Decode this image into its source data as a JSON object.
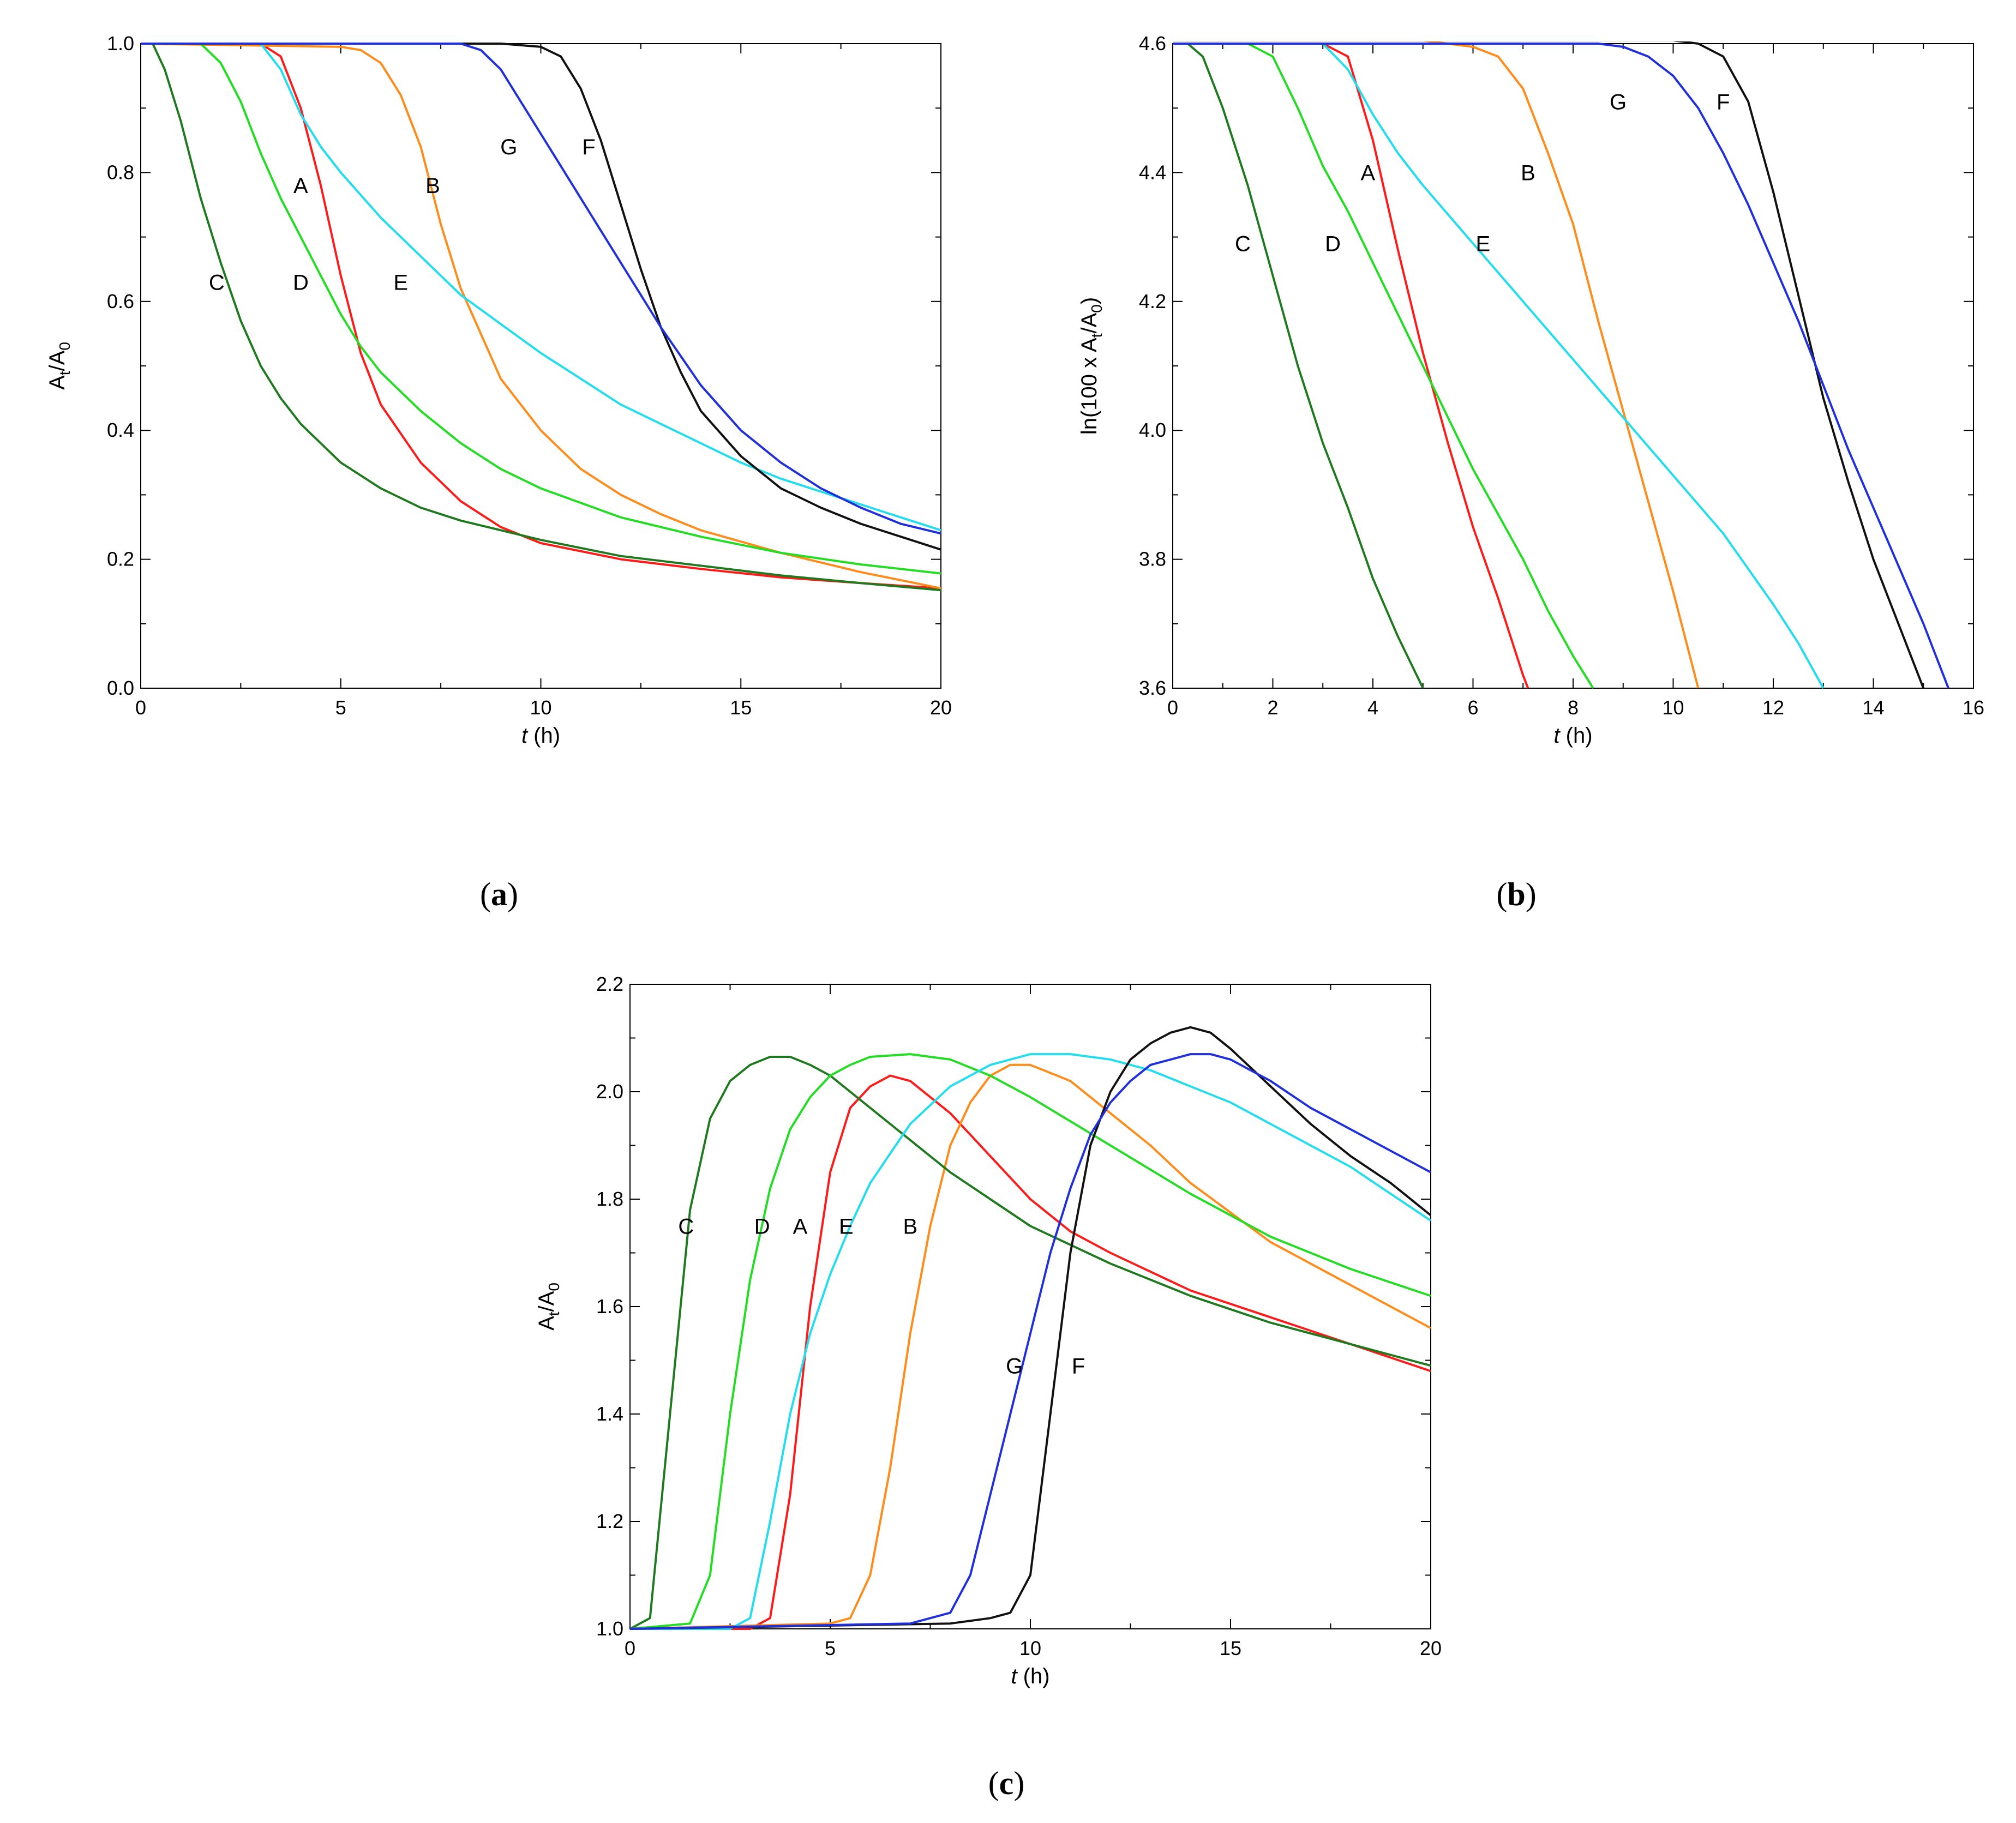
{
  "colors": {
    "A": "#ff1a1a",
    "B": "#ff8c1a",
    "C": "#1f7a1f",
    "D": "#22dd22",
    "E": "#22ddee",
    "F": "#111111",
    "G": "#1f2fdd"
  },
  "chart_data": [
    {
      "id": "a",
      "type": "line",
      "caption": "a",
      "ylabel": {
        "main": "A",
        "sub1": "t",
        "mid": "/A",
        "sub2": "0"
      },
      "xlabel": {
        "var": "t",
        "unit": " (h)"
      },
      "xlim": [
        0,
        20
      ],
      "ylim": [
        0.0,
        1.0
      ],
      "xticks": [
        0,
        5,
        10,
        15,
        20
      ],
      "xtick_labels": [
        "0",
        "5",
        "10",
        "15",
        "20"
      ],
      "yticks": [
        0.0,
        0.2,
        0.4,
        0.6,
        0.8,
        1.0
      ],
      "ytick_labels": [
        "0.0",
        "0.2",
        "0.4",
        "0.6",
        "0.8",
        "1.0"
      ],
      "series": [
        {
          "name": "A",
          "label_at": [
            4.0,
            0.78
          ],
          "x": [
            0,
            3.0,
            3.5,
            4.0,
            4.5,
            5.0,
            5.5,
            6.0,
            7.0,
            8.0,
            9.0,
            10.0,
            12.0,
            14.0,
            16.0,
            18.0,
            20.0
          ],
          "y": [
            1.0,
            1.0,
            0.98,
            0.9,
            0.78,
            0.64,
            0.52,
            0.44,
            0.35,
            0.29,
            0.25,
            0.225,
            0.2,
            0.185,
            0.172,
            0.163,
            0.155
          ]
        },
        {
          "name": "B",
          "label_at": [
            7.3,
            0.78
          ],
          "x": [
            0,
            5.0,
            5.5,
            6.0,
            6.5,
            7.0,
            7.5,
            8.0,
            9.0,
            10.0,
            11.0,
            12.0,
            13.0,
            14.0,
            16.0,
            18.0,
            20.0
          ],
          "y": [
            1.0,
            0.995,
            0.99,
            0.97,
            0.92,
            0.84,
            0.72,
            0.62,
            0.48,
            0.4,
            0.34,
            0.3,
            0.27,
            0.245,
            0.21,
            0.18,
            0.155
          ]
        },
        {
          "name": "C",
          "label_at": [
            1.9,
            0.63
          ],
          "x": [
            0,
            0.3,
            0.6,
            1.0,
            1.5,
            2.0,
            2.5,
            3.0,
            3.5,
            4.0,
            5.0,
            6.0,
            7.0,
            8.0,
            10.0,
            12.0,
            14.0,
            16.0,
            18.0,
            20.0
          ],
          "y": [
            1.0,
            1.0,
            0.96,
            0.88,
            0.76,
            0.66,
            0.57,
            0.5,
            0.45,
            0.41,
            0.35,
            0.31,
            0.28,
            0.26,
            0.23,
            0.205,
            0.19,
            0.175,
            0.163,
            0.152
          ]
        },
        {
          "name": "D",
          "label_at": [
            4.0,
            0.63
          ],
          "x": [
            0,
            1.5,
            2.0,
            2.5,
            3.0,
            3.5,
            4.0,
            4.5,
            5.0,
            5.5,
            6.0,
            7.0,
            8.0,
            9.0,
            10.0,
            12.0,
            14.0,
            16.0,
            18.0,
            20.0
          ],
          "y": [
            1.0,
            1.0,
            0.97,
            0.91,
            0.83,
            0.76,
            0.7,
            0.64,
            0.58,
            0.53,
            0.49,
            0.43,
            0.38,
            0.34,
            0.31,
            0.265,
            0.235,
            0.21,
            0.192,
            0.178
          ]
        },
        {
          "name": "E",
          "label_at": [
            6.5,
            0.63
          ],
          "x": [
            0,
            3.0,
            3.5,
            4.0,
            4.5,
            5.0,
            6.0,
            7.0,
            8.0,
            9.0,
            10.0,
            11.0,
            12.0,
            13.0,
            14.0,
            15.0,
            16.0,
            17.0,
            18.0,
            19.0,
            20.0
          ],
          "y": [
            1.0,
            1.0,
            0.96,
            0.89,
            0.84,
            0.8,
            0.73,
            0.67,
            0.61,
            0.565,
            0.52,
            0.48,
            0.44,
            0.41,
            0.38,
            0.35,
            0.325,
            0.305,
            0.285,
            0.265,
            0.245
          ]
        },
        {
          "name": "F",
          "label_at": [
            11.2,
            0.84
          ],
          "x": [
            0,
            9.0,
            10.0,
            10.5,
            11.0,
            11.5,
            12.0,
            12.5,
            13.0,
            13.5,
            14.0,
            15.0,
            16.0,
            17.0,
            18.0,
            19.0,
            20.0
          ],
          "y": [
            1.0,
            1.0,
            0.995,
            0.98,
            0.93,
            0.85,
            0.75,
            0.65,
            0.56,
            0.49,
            0.43,
            0.36,
            0.31,
            0.28,
            0.255,
            0.235,
            0.215
          ]
        },
        {
          "name": "G",
          "label_at": [
            9.2,
            0.84
          ],
          "x": [
            0,
            8.0,
            8.5,
            9.0,
            9.5,
            10.0,
            10.5,
            11.0,
            12.0,
            13.0,
            14.0,
            15.0,
            16.0,
            17.0,
            18.0,
            19.0,
            20.0
          ],
          "y": [
            1.0,
            1.0,
            0.99,
            0.96,
            0.91,
            0.86,
            0.81,
            0.76,
            0.66,
            0.56,
            0.47,
            0.4,
            0.35,
            0.31,
            0.28,
            0.255,
            0.24
          ]
        }
      ]
    },
    {
      "id": "b",
      "type": "line",
      "caption": "b",
      "ylabel": {
        "main": "ln(100 x A",
        "sub1": "t",
        "mid": "/A",
        "sub2": "0",
        "tail": ")"
      },
      "xlabel": {
        "var": "t",
        "unit": " (h)"
      },
      "xlim": [
        0,
        16
      ],
      "ylim": [
        3.6,
        4.6
      ],
      "xticks": [
        0,
        2,
        4,
        6,
        8,
        10,
        12,
        14,
        16
      ],
      "xtick_labels": [
        "0",
        "2",
        "4",
        "6",
        "8",
        "10",
        "12",
        "14",
        "16"
      ],
      "yticks": [
        3.6,
        3.8,
        4.0,
        4.2,
        4.4,
        4.6
      ],
      "ytick_labels": [
        "3.6",
        "3.8",
        "4.0",
        "4.2",
        "4.4",
        "4.6"
      ],
      "series": [
        {
          "name": "A",
          "label_at": [
            3.9,
            4.4
          ],
          "x": [
            0,
            3.0,
            3.5,
            4.0,
            4.5,
            5.0,
            5.5,
            6.0,
            6.5,
            7.0,
            7.1
          ],
          "y": [
            4.6,
            4.6,
            4.58,
            4.45,
            4.28,
            4.12,
            3.98,
            3.85,
            3.74,
            3.62,
            3.6
          ]
        },
        {
          "name": "B",
          "label_at": [
            7.1,
            4.4
          ],
          "x": [
            0,
            5.0,
            5.5,
            6.0,
            6.5,
            7.0,
            7.5,
            8.0,
            8.5,
            9.0,
            9.5,
            10.0,
            10.5
          ],
          "y": [
            4.605,
            4.605,
            4.6,
            4.595,
            4.58,
            4.53,
            4.43,
            4.32,
            4.17,
            4.03,
            3.89,
            3.75,
            3.6
          ]
        },
        {
          "name": "C",
          "label_at": [
            1.4,
            4.29
          ],
          "x": [
            0,
            0.3,
            0.6,
            1.0,
            1.5,
            2.0,
            2.5,
            3.0,
            3.5,
            4.0,
            4.5,
            5.0
          ],
          "y": [
            4.6,
            4.6,
            4.58,
            4.5,
            4.38,
            4.24,
            4.1,
            3.98,
            3.88,
            3.77,
            3.68,
            3.6
          ]
        },
        {
          "name": "D",
          "label_at": [
            3.2,
            4.29
          ],
          "x": [
            0,
            1.5,
            2.0,
            2.5,
            3.0,
            3.5,
            4.0,
            4.5,
            5.0,
            5.5,
            6.0,
            6.5,
            7.0,
            7.5,
            8.0,
            8.4
          ],
          "y": [
            4.6,
            4.6,
            4.58,
            4.5,
            4.41,
            4.34,
            4.26,
            4.18,
            4.1,
            4.02,
            3.94,
            3.87,
            3.8,
            3.72,
            3.65,
            3.6
          ]
        },
        {
          "name": "E",
          "label_at": [
            6.2,
            4.29
          ],
          "x": [
            0,
            3.0,
            3.5,
            4.0,
            4.5,
            5.0,
            6.0,
            7.0,
            8.0,
            9.0,
            10.0,
            11.0,
            12.0,
            12.5,
            13.0
          ],
          "y": [
            4.6,
            4.6,
            4.56,
            4.49,
            4.43,
            4.38,
            4.29,
            4.2,
            4.11,
            4.02,
            3.93,
            3.84,
            3.73,
            3.67,
            3.6
          ]
        },
        {
          "name": "F",
          "label_at": [
            11.0,
            4.51
          ],
          "x": [
            0,
            9.0,
            10.0,
            10.5,
            11.0,
            11.5,
            12.0,
            12.5,
            13.0,
            13.5,
            14.0,
            14.5,
            15.0
          ],
          "y": [
            4.605,
            4.605,
            4.605,
            4.6,
            4.58,
            4.51,
            4.37,
            4.21,
            4.05,
            3.92,
            3.8,
            3.7,
            3.6
          ]
        },
        {
          "name": "G",
          "label_at": [
            8.9,
            4.51
          ],
          "x": [
            0,
            8.0,
            8.5,
            9.0,
            9.5,
            10.0,
            10.5,
            11.0,
            11.5,
            12.0,
            12.5,
            13.0,
            13.5,
            14.0,
            14.5,
            15.0,
            15.5
          ],
          "y": [
            4.6,
            4.6,
            4.6,
            4.595,
            4.58,
            4.55,
            4.5,
            4.43,
            4.35,
            4.26,
            4.17,
            4.07,
            3.97,
            3.88,
            3.79,
            3.7,
            3.6
          ]
        }
      ]
    },
    {
      "id": "c",
      "type": "line",
      "caption": "c",
      "ylabel": {
        "main": "A",
        "sub1": "t",
        "mid": "/A",
        "sub2": "0"
      },
      "xlabel": {
        "var": "t",
        "unit": " (h)"
      },
      "xlim": [
        0,
        20
      ],
      "ylim": [
        1.0,
        2.2
      ],
      "xticks": [
        0,
        5,
        10,
        15,
        20
      ],
      "xtick_labels": [
        "0",
        "5",
        "10",
        "15",
        "20"
      ],
      "yticks": [
        1.0,
        1.2,
        1.4,
        1.6,
        1.8,
        2.0,
        2.2
      ],
      "ytick_labels": [
        "1.0",
        "1.2",
        "1.4",
        "1.6",
        "1.8",
        "2.0",
        "2.2"
      ],
      "series": [
        {
          "name": "A",
          "label_at": [
            4.25,
            1.75
          ],
          "x": [
            0,
            3.0,
            3.5,
            4.0,
            4.5,
            5.0,
            5.5,
            6.0,
            6.5,
            7.0,
            8.0,
            9.0,
            10.0,
            11.0,
            12.0,
            14.0,
            16.0,
            18.0,
            20.0
          ],
          "y": [
            1.0,
            1.0,
            1.02,
            1.25,
            1.6,
            1.85,
            1.97,
            2.01,
            2.03,
            2.02,
            1.96,
            1.88,
            1.8,
            1.74,
            1.7,
            1.63,
            1.58,
            1.53,
            1.48
          ]
        },
        {
          "name": "B",
          "label_at": [
            7.0,
            1.75
          ],
          "x": [
            0,
            5.0,
            5.5,
            6.0,
            6.5,
            7.0,
            7.5,
            8.0,
            8.5,
            9.0,
            9.5,
            10.0,
            11.0,
            12.0,
            13.0,
            14.0,
            16.0,
            18.0,
            20.0
          ],
          "y": [
            1.0,
            1.01,
            1.02,
            1.1,
            1.3,
            1.55,
            1.75,
            1.9,
            1.98,
            2.03,
            2.05,
            2.05,
            2.02,
            1.96,
            1.9,
            1.83,
            1.72,
            1.64,
            1.56
          ]
        },
        {
          "name": "C",
          "label_at": [
            1.4,
            1.75
          ],
          "x": [
            0,
            0.5,
            1.0,
            1.5,
            2.0,
            2.5,
            3.0,
            3.5,
            4.0,
            4.5,
            5.0,
            6.0,
            7.0,
            8.0,
            10.0,
            12.0,
            14.0,
            16.0,
            18.0,
            20.0
          ],
          "y": [
            1.0,
            1.02,
            1.4,
            1.78,
            1.95,
            2.02,
            2.05,
            2.065,
            2.065,
            2.05,
            2.03,
            1.97,
            1.91,
            1.85,
            1.75,
            1.68,
            1.62,
            1.57,
            1.53,
            1.49
          ]
        },
        {
          "name": "D",
          "label_at": [
            3.3,
            1.75
          ],
          "x": [
            0,
            1.5,
            2.0,
            2.5,
            3.0,
            3.5,
            4.0,
            4.5,
            5.0,
            5.5,
            6.0,
            7.0,
            8.0,
            9.0,
            10.0,
            12.0,
            14.0,
            16.0,
            18.0,
            20.0
          ],
          "y": [
            1.0,
            1.01,
            1.1,
            1.4,
            1.65,
            1.82,
            1.93,
            1.99,
            2.03,
            2.05,
            2.065,
            2.07,
            2.06,
            2.03,
            1.99,
            1.9,
            1.81,
            1.73,
            1.67,
            1.62
          ]
        },
        {
          "name": "E",
          "label_at": [
            5.4,
            1.75
          ],
          "x": [
            0,
            2.5,
            3.0,
            3.5,
            4.0,
            4.5,
            5.0,
            5.5,
            6.0,
            7.0,
            8.0,
            9.0,
            10.0,
            11.0,
            12.0,
            13.0,
            14.0,
            15.0,
            16.0,
            17.0,
            18.0,
            19.0,
            20.0
          ],
          "y": [
            1.0,
            1.0,
            1.02,
            1.2,
            1.4,
            1.55,
            1.66,
            1.75,
            1.83,
            1.94,
            2.01,
            2.05,
            2.07,
            2.07,
            2.06,
            2.04,
            2.01,
            1.98,
            1.94,
            1.9,
            1.86,
            1.81,
            1.76
          ]
        },
        {
          "name": "F",
          "label_at": [
            11.2,
            1.49
          ],
          "x": [
            0,
            8.0,
            9.0,
            9.5,
            10.0,
            10.5,
            11.0,
            11.5,
            12.0,
            12.5,
            13.0,
            13.5,
            14.0,
            14.5,
            15.0,
            16.0,
            17.0,
            18.0,
            19.0,
            20.0
          ],
          "y": [
            1.0,
            1.01,
            1.02,
            1.03,
            1.1,
            1.4,
            1.7,
            1.9,
            2.0,
            2.06,
            2.09,
            2.11,
            2.12,
            2.11,
            2.08,
            2.01,
            1.94,
            1.88,
            1.83,
            1.77
          ]
        },
        {
          "name": "G",
          "label_at": [
            9.6,
            1.49
          ],
          "x": [
            0,
            7.0,
            8.0,
            8.5,
            9.0,
            9.5,
            10.0,
            10.5,
            11.0,
            11.5,
            12.0,
            12.5,
            13.0,
            14.0,
            14.5,
            15.0,
            16.0,
            17.0,
            18.0,
            19.0,
            20.0
          ],
          "y": [
            1.0,
            1.01,
            1.03,
            1.1,
            1.25,
            1.4,
            1.55,
            1.7,
            1.82,
            1.92,
            1.98,
            2.02,
            2.05,
            2.07,
            2.07,
            2.06,
            2.02,
            1.97,
            1.93,
            1.89,
            1.85
          ]
        }
      ]
    }
  ]
}
